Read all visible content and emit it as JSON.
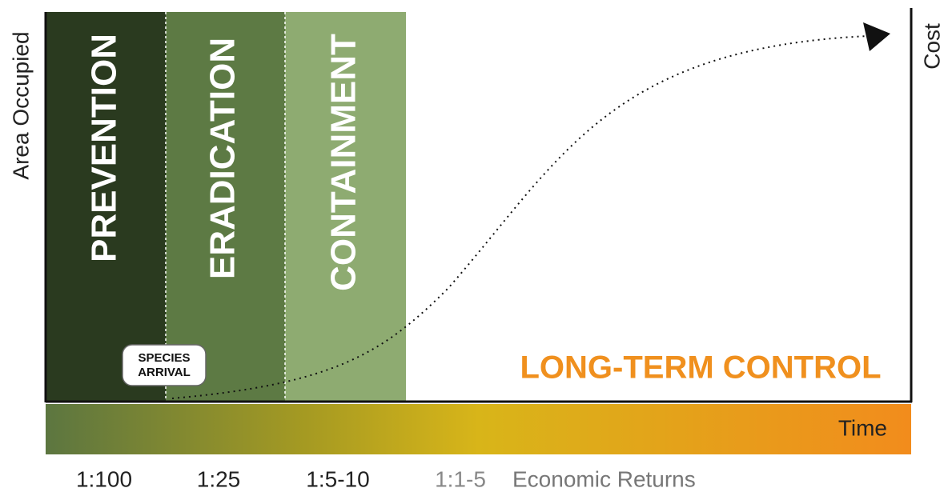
{
  "axes": {
    "y_label": "Area Occupied",
    "y2_label": "Cost",
    "x_label": "Time"
  },
  "phases": [
    {
      "label": "PREVENTION",
      "return": "1:100"
    },
    {
      "label": "ERADICATION",
      "return": "1:25"
    },
    {
      "label": "CONTAINMENT",
      "return": "1:5-10"
    },
    {
      "label": "LONG-TERM CONTROL",
      "return": "1:1-5"
    }
  ],
  "marker": "SPECIES ARRIVAL",
  "returns_label": "Economic Returns"
}
